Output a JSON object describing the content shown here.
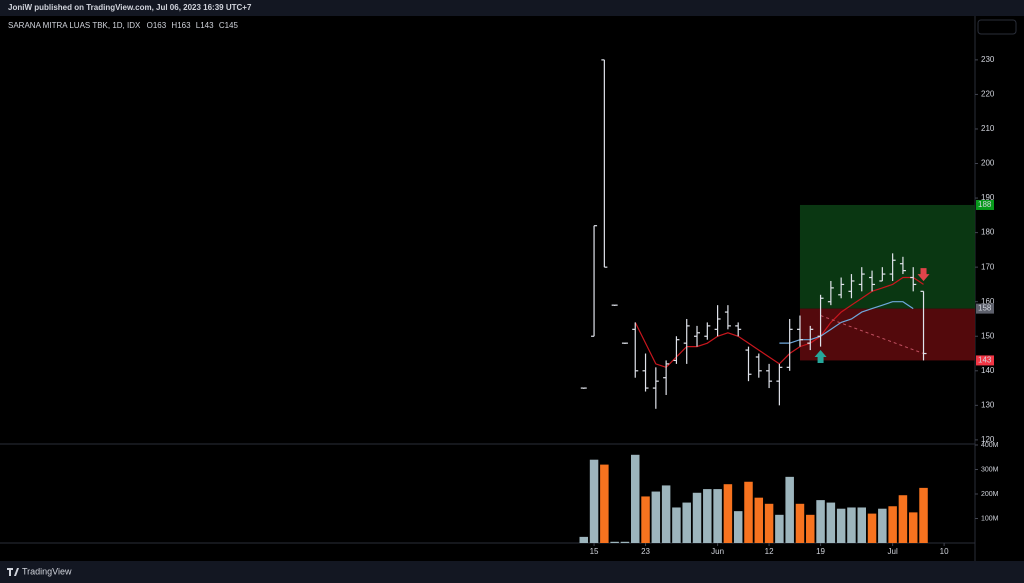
{
  "header": {
    "text": "JoniW published on TradingView.com, Jul 06, 2023 16:39 UTC+7"
  },
  "footer": {
    "brand": "TradingView"
  },
  "chart_data": {
    "type": "ohlc",
    "symbol": "SARANA MITRA LUAS TBK, 1D, IDX",
    "ohlc_labels": [
      "O",
      "H",
      "L",
      "C"
    ],
    "x": [
      0,
      1,
      2,
      3,
      4,
      5,
      6,
      7,
      8,
      9,
      10,
      11,
      12,
      13,
      14,
      15,
      16,
      17,
      18,
      19,
      20,
      21,
      22,
      23,
      24,
      25,
      26,
      27,
      28,
      29,
      30,
      31,
      32,
      33
    ],
    "open": [
      135,
      150,
      230,
      159,
      148,
      152,
      140,
      135,
      138,
      143,
      148,
      150,
      150,
      152,
      157,
      153,
      146,
      144,
      140,
      137,
      141,
      152,
      148,
      150,
      160,
      162,
      163,
      165,
      167,
      166,
      168,
      171,
      167,
      163
    ],
    "high": [
      135,
      182,
      230,
      159,
      148,
      154,
      145,
      141,
      143,
      150,
      155,
      153,
      154,
      159,
      159,
      154,
      147,
      145,
      142,
      142,
      155,
      156,
      153,
      162,
      166,
      167,
      168,
      170,
      169,
      170,
      174,
      173,
      170,
      163
    ],
    "low": [
      135,
      150,
      170,
      159,
      148,
      138,
      134,
      129,
      133,
      142,
      142,
      147,
      149,
      150,
      152,
      150,
      137,
      138,
      135,
      130,
      140,
      147,
      146,
      147,
      159,
      161,
      161,
      163,
      163,
      166,
      166,
      168,
      163,
      143
    ],
    "close": [
      135,
      182,
      170,
      159,
      148,
      140,
      135,
      137,
      142,
      149,
      153,
      151,
      153,
      155,
      153,
      152,
      139,
      140,
      137,
      141,
      152,
      149,
      152,
      161,
      164,
      165,
      166,
      168,
      165,
      168,
      172,
      169,
      165,
      145
    ],
    "bar_color": "#e0e3eb",
    "volume": [
      25000000,
      340000000,
      320000000,
      5000000,
      5000000,
      360000000,
      190000000,
      210000000,
      235000000,
      145000000,
      165000000,
      205000000,
      220000000,
      220000000,
      240000000,
      130000000,
      250000000,
      185000000,
      160000000,
      115000000,
      270000000,
      160000000,
      115000000,
      175000000,
      165000000,
      140000000,
      145000000,
      145000000,
      120000000,
      140000000,
      150000000,
      195000000,
      125000000,
      225000000
    ],
    "volume_colors": [
      "#9db5bd",
      "#9db5bd",
      "#f7731f",
      "#9db5bd",
      "#9db5bd",
      "#9db5bd",
      "#f7731f",
      "#9db5bd",
      "#9db5bd",
      "#9db5bd",
      "#9db5bd",
      "#9db5bd",
      "#9db5bd",
      "#9db5bd",
      "#f7731f",
      "#9db5bd",
      "#f7731f",
      "#f7731f",
      "#f7731f",
      "#9db5bd",
      "#9db5bd",
      "#f7731f",
      "#f7731f",
      "#9db5bd",
      "#9db5bd",
      "#9db5bd",
      "#9db5bd",
      "#9db5bd",
      "#f7731f",
      "#9db5bd",
      "#f7731f",
      "#f7731f",
      "#f7731f",
      "#f7731f"
    ],
    "lines": [
      {
        "color": "#c8161d",
        "values": [
          null,
          null,
          null,
          null,
          null,
          154,
          148,
          142,
          141,
          144,
          147,
          147,
          148,
          150,
          151,
          150,
          148,
          146,
          144,
          142,
          145,
          147,
          148,
          150,
          154,
          157,
          159,
          161,
          163,
          164,
          165,
          167,
          167,
          165
        ]
      },
      {
        "color": "#6fa8dc",
        "values": [
          null,
          null,
          null,
          null,
          null,
          null,
          null,
          null,
          null,
          null,
          null,
          null,
          null,
          null,
          null,
          null,
          null,
          null,
          null,
          148,
          148,
          149,
          149,
          150,
          152,
          154,
          155,
          157,
          158,
          159,
          160,
          160,
          158,
          null
        ]
      }
    ],
    "position": {
      "start": 21,
      "target": 188,
      "entry": 158,
      "stop": 143
    },
    "signals": [
      {
        "x": 23,
        "y": 144,
        "color": "#26a69a",
        "direction": "up"
      },
      {
        "x": 33,
        "y": 168,
        "color": "#e0444a",
        "direction": "down"
      }
    ],
    "trend_line": {
      "x": [
        23,
        33
      ],
      "y": [
        156,
        145
      ],
      "color": "#c05060"
    },
    "xlim": [
      -56.7,
      38
    ],
    "xticks": [
      {
        "value": 1,
        "label": "15"
      },
      {
        "value": 6,
        "label": "23"
      },
      {
        "value": 13,
        "label": "Jun"
      },
      {
        "value": 18,
        "label": "12"
      },
      {
        "value": 23,
        "label": "19"
      },
      {
        "value": 30,
        "label": "Jul"
      },
      {
        "value": 35,
        "label": "10"
      }
    ],
    "ylim": [
      119.1,
      242.7
    ],
    "yticks": [
      120,
      130,
      140,
      150,
      160,
      170,
      180,
      190,
      200,
      210,
      220,
      230
    ],
    "volume_ylim": [
      0,
      400000000
    ],
    "volume_yticks": [
      {
        "value": 100000000,
        "label": "100M"
      },
      {
        "value": 200000000,
        "label": "200M"
      },
      {
        "value": 300000000,
        "label": "300M"
      },
      {
        "value": 400000000,
        "label": "400M"
      }
    ]
  }
}
